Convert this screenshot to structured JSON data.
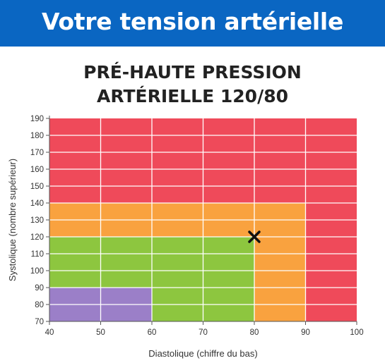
{
  "header": {
    "title": "Votre tension artérielle"
  },
  "chart_data": {
    "type": "heatmap",
    "title_lines": [
      "PRÉ-HAUTE PRESSION",
      "ARTÉRIELLE 120/80"
    ],
    "xlabel": "Diastolique (chiffre du bas)",
    "ylabel": "Systolique (nombre supérieur)",
    "xlim": [
      40,
      100
    ],
    "ylim": [
      70,
      190
    ],
    "x_ticks": [
      40,
      50,
      60,
      70,
      80,
      90,
      100
    ],
    "y_ticks": [
      70,
      80,
      90,
      100,
      110,
      120,
      130,
      140,
      150,
      160,
      170,
      180,
      190
    ],
    "grid": true,
    "zones": [
      {
        "color": "#ef4a5a",
        "x": [
          40,
          100
        ],
        "y": [
          70,
          190
        ]
      },
      {
        "color": "#f9a23f",
        "x": [
          40,
          90
        ],
        "y": [
          70,
          140
        ]
      },
      {
        "color": "#8dc63f",
        "x": [
          40,
          80
        ],
        "y": [
          70,
          120
        ]
      },
      {
        "color": "#9b7fc8",
        "x": [
          40,
          60
        ],
        "y": [
          70,
          90
        ]
      }
    ],
    "marker": {
      "x": 80,
      "y": 120,
      "symbol": "×"
    }
  }
}
